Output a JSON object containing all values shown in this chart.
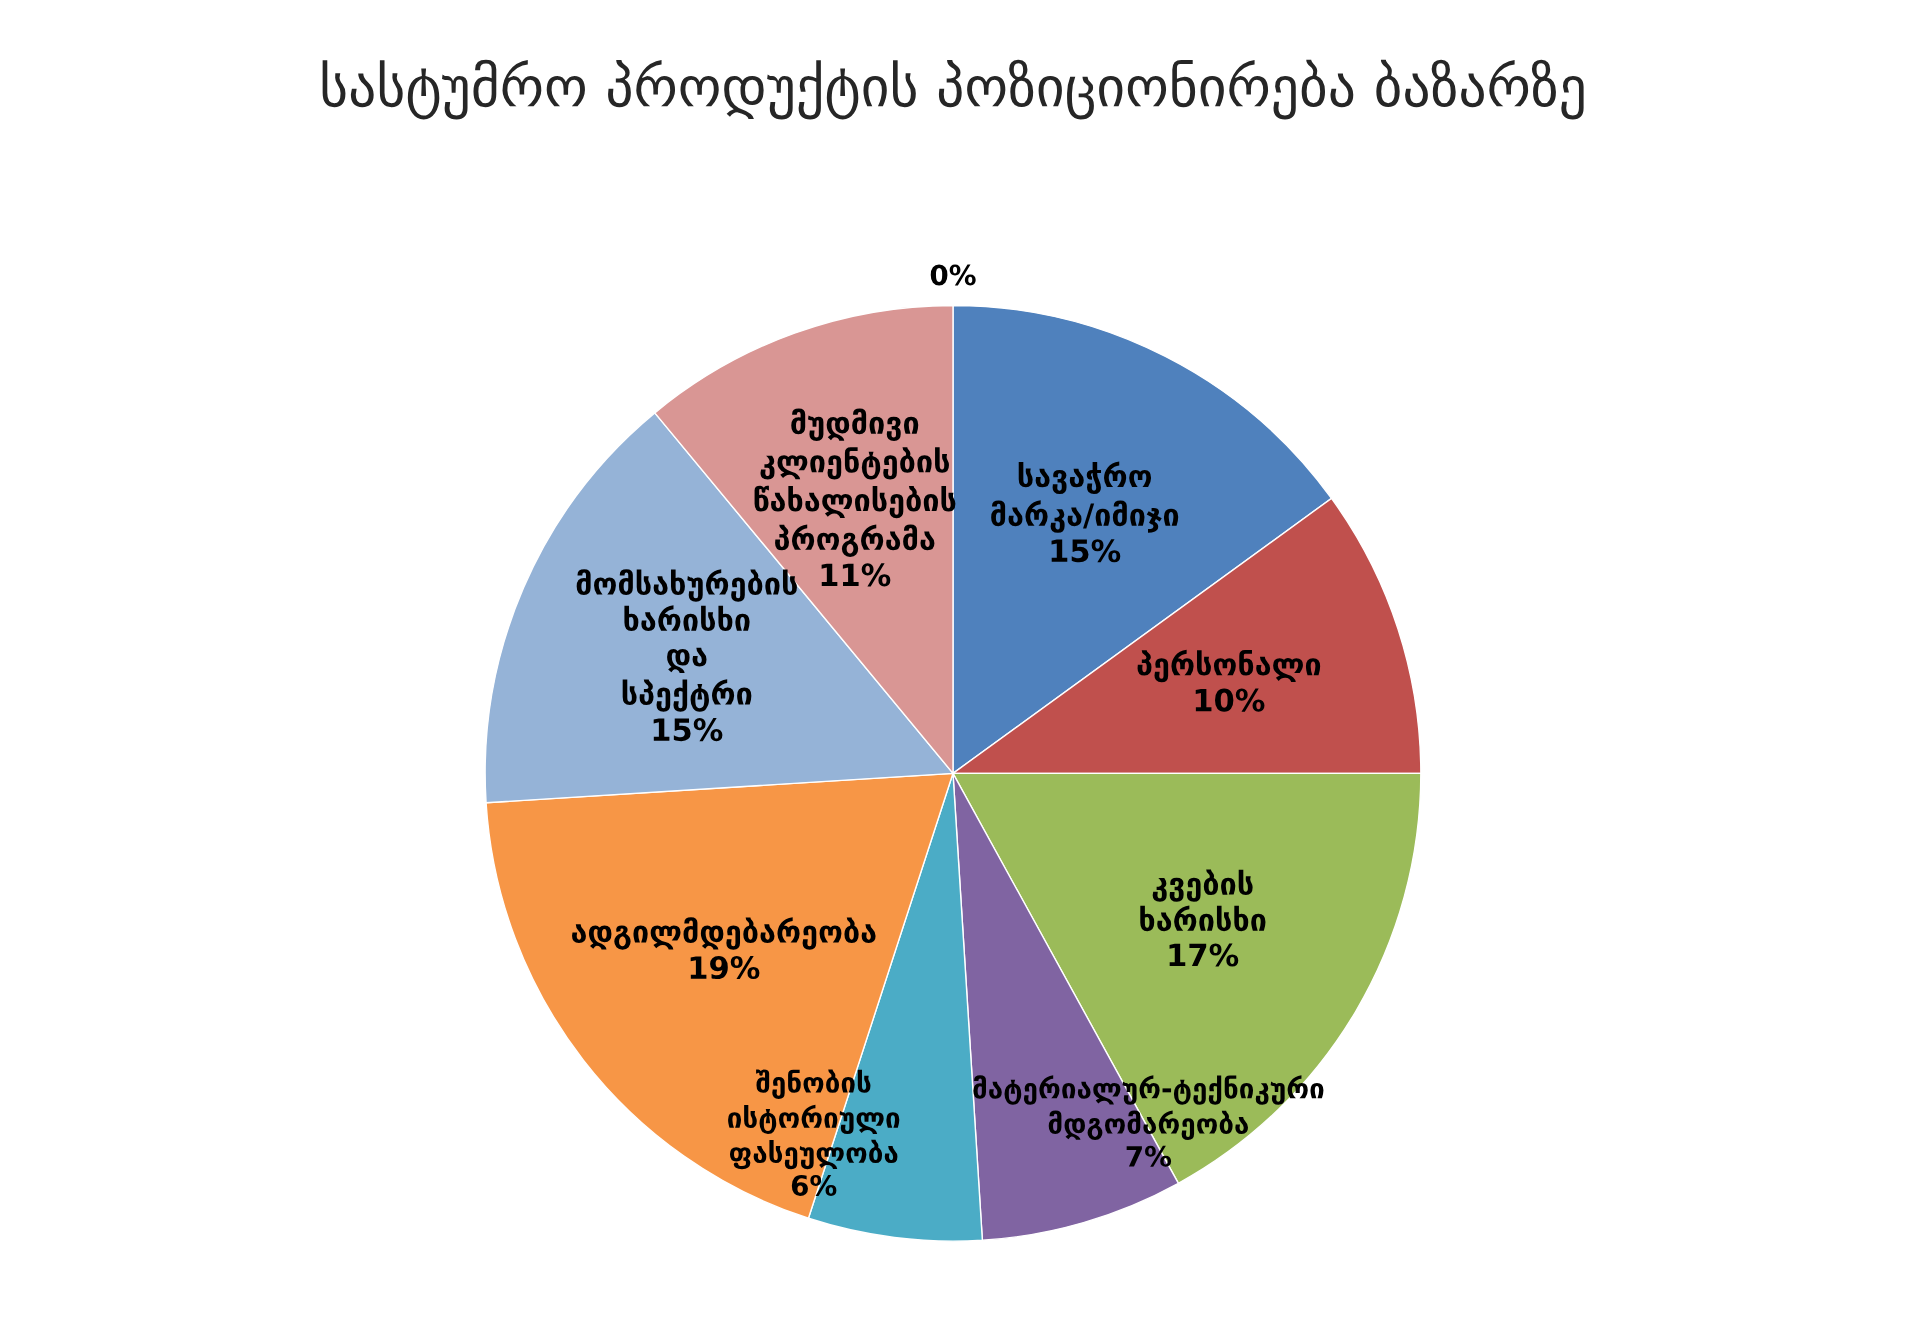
{
  "chart_data": {
    "type": "pie",
    "title": "სასტუმრო პროდუქტის პოზიციონირება ბაზარზე",
    "categories": [
      null,
      "სავაჭრო მარკა/იმიჯი",
      "პერსონალი",
      "კვების ხარისხი",
      "მატერიალურ-ტექნიკური მდგომარეობა",
      "შენობის ისტორიული ფასეულობა",
      "ადგილმდებარეობა",
      "მომსახურების ხარისხი და სპექტრი",
      "მუდმივი კლიენტების წახალისების პროგრამა"
    ],
    "values": [
      0,
      15,
      10,
      17,
      7,
      6,
      19,
      15,
      11
    ],
    "colors": [
      "#4f81bd",
      "#4f81bd",
      "#c0504d",
      "#9bbb59",
      "#8064a2",
      "#4bacc6",
      "#f79646",
      "#95b3d7",
      "#d99694"
    ],
    "value_labels": [
      "0%",
      "15%",
      "10%",
      "17%",
      "7%",
      "6%",
      "19%",
      "15%",
      "11%"
    ],
    "legend": false
  }
}
